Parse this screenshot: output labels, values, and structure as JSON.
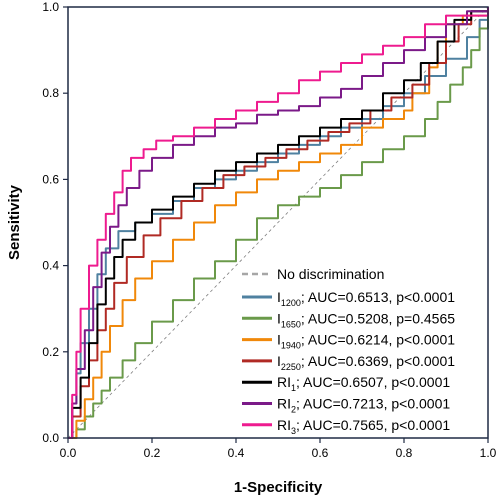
{
  "chart_data": {
    "type": "line",
    "title": "",
    "xlabel": "1-Specificity",
    "ylabel": "Sensitivity",
    "xlim": [
      0,
      1
    ],
    "ylim": [
      0,
      1
    ],
    "x_ticks": [
      "0.0",
      "0.2",
      "0.4",
      "0.6",
      "0.8",
      "1.0"
    ],
    "y_ticks": [
      "0.0",
      "0.2",
      "0.4",
      "0.6",
      "0.8",
      "1.0"
    ],
    "grid": false,
    "legend_position": "bottom-right",
    "reference_line": {
      "name": "No discrimination",
      "color": "#a6a6a6",
      "style": "dashed",
      "points": [
        [
          0,
          0
        ],
        [
          1,
          1
        ]
      ]
    },
    "series": [
      {
        "base": "I",
        "sub": "1200",
        "stats": "; AUC=0.6513, p<0.0001",
        "color": "#4f81a0",
        "points": [
          [
            0,
            0
          ],
          [
            0.01,
            0.08
          ],
          [
            0.02,
            0.15
          ],
          [
            0.03,
            0.22
          ],
          [
            0.05,
            0.3
          ],
          [
            0.07,
            0.38
          ],
          [
            0.09,
            0.44
          ],
          [
            0.12,
            0.48
          ],
          [
            0.16,
            0.5
          ],
          [
            0.2,
            0.52
          ],
          [
            0.25,
            0.55
          ],
          [
            0.3,
            0.58
          ],
          [
            0.35,
            0.6
          ],
          [
            0.4,
            0.62
          ],
          [
            0.45,
            0.64
          ],
          [
            0.5,
            0.66
          ],
          [
            0.55,
            0.68
          ],
          [
            0.6,
            0.7
          ],
          [
            0.65,
            0.72
          ],
          [
            0.7,
            0.74
          ],
          [
            0.75,
            0.77
          ],
          [
            0.8,
            0.8
          ],
          [
            0.85,
            0.84
          ],
          [
            0.9,
            0.88
          ],
          [
            0.95,
            0.93
          ],
          [
            0.98,
            0.97
          ],
          [
            1,
            1
          ]
        ]
      },
      {
        "base": "I",
        "sub": "1650",
        "stats": "; AUC=0.5208, p=0.4565",
        "color": "#6a9a4a",
        "points": [
          [
            0,
            0
          ],
          [
            0.02,
            0.02
          ],
          [
            0.04,
            0.05
          ],
          [
            0.06,
            0.08
          ],
          [
            0.08,
            0.11
          ],
          [
            0.1,
            0.14
          ],
          [
            0.13,
            0.18
          ],
          [
            0.16,
            0.22
          ],
          [
            0.2,
            0.27
          ],
          [
            0.25,
            0.32
          ],
          [
            0.3,
            0.37
          ],
          [
            0.35,
            0.41
          ],
          [
            0.4,
            0.46
          ],
          [
            0.45,
            0.51
          ],
          [
            0.5,
            0.54
          ],
          [
            0.55,
            0.56
          ],
          [
            0.6,
            0.58
          ],
          [
            0.65,
            0.61
          ],
          [
            0.7,
            0.64
          ],
          [
            0.75,
            0.67
          ],
          [
            0.8,
            0.7
          ],
          [
            0.85,
            0.74
          ],
          [
            0.88,
            0.78
          ],
          [
            0.91,
            0.82
          ],
          [
            0.94,
            0.86
          ],
          [
            0.96,
            0.9
          ],
          [
            0.98,
            0.95
          ],
          [
            1,
            1
          ]
        ]
      },
      {
        "base": "I",
        "sub": "1940",
        "stats": "; AUC=0.6214, p<0.0001",
        "color": "#f0880a",
        "points": [
          [
            0,
            0
          ],
          [
            0.02,
            0.04
          ],
          [
            0.04,
            0.09
          ],
          [
            0.06,
            0.14
          ],
          [
            0.08,
            0.2
          ],
          [
            0.1,
            0.26
          ],
          [
            0.13,
            0.32
          ],
          [
            0.16,
            0.37
          ],
          [
            0.2,
            0.41
          ],
          [
            0.25,
            0.46
          ],
          [
            0.3,
            0.5
          ],
          [
            0.35,
            0.54
          ],
          [
            0.4,
            0.57
          ],
          [
            0.45,
            0.6
          ],
          [
            0.5,
            0.62
          ],
          [
            0.55,
            0.64
          ],
          [
            0.6,
            0.66
          ],
          [
            0.65,
            0.68
          ],
          [
            0.7,
            0.72
          ],
          [
            0.75,
            0.74
          ],
          [
            0.8,
            0.76
          ],
          [
            0.82,
            0.8
          ],
          [
            0.86,
            0.86
          ],
          [
            0.88,
            0.92
          ],
          [
            0.9,
            0.96
          ],
          [
            0.94,
            0.98
          ],
          [
            1,
            1
          ]
        ]
      },
      {
        "base": "I",
        "sub": "2250",
        "stats": "; AUC=0.6369, p<0.0001",
        "color": "#b02a24",
        "points": [
          [
            0,
            0
          ],
          [
            0.01,
            0.05
          ],
          [
            0.03,
            0.12
          ],
          [
            0.05,
            0.18
          ],
          [
            0.07,
            0.25
          ],
          [
            0.09,
            0.3
          ],
          [
            0.11,
            0.36
          ],
          [
            0.14,
            0.42
          ],
          [
            0.18,
            0.47
          ],
          [
            0.22,
            0.51
          ],
          [
            0.27,
            0.55
          ],
          [
            0.32,
            0.58
          ],
          [
            0.37,
            0.61
          ],
          [
            0.42,
            0.63
          ],
          [
            0.47,
            0.65
          ],
          [
            0.52,
            0.67
          ],
          [
            0.57,
            0.69
          ],
          [
            0.62,
            0.71
          ],
          [
            0.67,
            0.73
          ],
          [
            0.72,
            0.76
          ],
          [
            0.77,
            0.79
          ],
          [
            0.82,
            0.82
          ],
          [
            0.86,
            0.87
          ],
          [
            0.9,
            0.92
          ],
          [
            0.93,
            0.96
          ],
          [
            0.96,
            0.99
          ],
          [
            1,
            1
          ]
        ]
      },
      {
        "base": "RI",
        "sub": "1",
        "stats": "; AUC=0.6507, p<0.0001",
        "color": "#000000",
        "points": [
          [
            0,
            0
          ],
          [
            0.01,
            0.07
          ],
          [
            0.03,
            0.14
          ],
          [
            0.05,
            0.22
          ],
          [
            0.07,
            0.31
          ],
          [
            0.09,
            0.37
          ],
          [
            0.11,
            0.42
          ],
          [
            0.13,
            0.46
          ],
          [
            0.16,
            0.5
          ],
          [
            0.2,
            0.53
          ],
          [
            0.25,
            0.56
          ],
          [
            0.3,
            0.59
          ],
          [
            0.35,
            0.62
          ],
          [
            0.4,
            0.64
          ],
          [
            0.45,
            0.66
          ],
          [
            0.5,
            0.68
          ],
          [
            0.55,
            0.7
          ],
          [
            0.6,
            0.72
          ],
          [
            0.65,
            0.74
          ],
          [
            0.7,
            0.76
          ],
          [
            0.75,
            0.8
          ],
          [
            0.8,
            0.83
          ],
          [
            0.84,
            0.87
          ],
          [
            0.88,
            0.92
          ],
          [
            0.92,
            0.97
          ],
          [
            0.96,
            0.99
          ],
          [
            1,
            1
          ]
        ]
      },
      {
        "base": "RI",
        "sub": "2",
        "stats": "; AUC=0.7213, p<0.0001",
        "color": "#7b1a88",
        "points": [
          [
            0,
            0
          ],
          [
            0.01,
            0.08
          ],
          [
            0.02,
            0.16
          ],
          [
            0.04,
            0.25
          ],
          [
            0.06,
            0.35
          ],
          [
            0.08,
            0.43
          ],
          [
            0.1,
            0.49
          ],
          [
            0.12,
            0.54
          ],
          [
            0.14,
            0.58
          ],
          [
            0.17,
            0.62
          ],
          [
            0.2,
            0.65
          ],
          [
            0.25,
            0.68
          ],
          [
            0.3,
            0.7
          ],
          [
            0.35,
            0.72
          ],
          [
            0.4,
            0.73
          ],
          [
            0.45,
            0.75
          ],
          [
            0.5,
            0.76
          ],
          [
            0.55,
            0.77
          ],
          [
            0.6,
            0.79
          ],
          [
            0.65,
            0.81
          ],
          [
            0.7,
            0.84
          ],
          [
            0.75,
            0.87
          ],
          [
            0.8,
            0.9
          ],
          [
            0.85,
            0.93
          ],
          [
            0.9,
            0.96
          ],
          [
            0.95,
            0.99
          ],
          [
            1,
            1
          ]
        ]
      },
      {
        "base": "RI",
        "sub": "3",
        "stats": "; AUC=0.7565, p<0.0001",
        "color": "#ee1b8f",
        "points": [
          [
            0,
            0
          ],
          [
            0.01,
            0.1
          ],
          [
            0.02,
            0.2
          ],
          [
            0.03,
            0.3
          ],
          [
            0.05,
            0.4
          ],
          [
            0.07,
            0.46
          ],
          [
            0.09,
            0.52
          ],
          [
            0.11,
            0.57
          ],
          [
            0.13,
            0.62
          ],
          [
            0.15,
            0.65
          ],
          [
            0.18,
            0.67
          ],
          [
            0.21,
            0.69
          ],
          [
            0.25,
            0.7
          ],
          [
            0.3,
            0.72
          ],
          [
            0.35,
            0.74
          ],
          [
            0.4,
            0.76
          ],
          [
            0.45,
            0.78
          ],
          [
            0.5,
            0.8
          ],
          [
            0.55,
            0.83
          ],
          [
            0.6,
            0.85
          ],
          [
            0.65,
            0.87
          ],
          [
            0.7,
            0.89
          ],
          [
            0.75,
            0.91
          ],
          [
            0.8,
            0.93
          ],
          [
            0.85,
            0.96
          ],
          [
            0.9,
            0.98
          ],
          [
            1,
            1
          ]
        ]
      }
    ]
  }
}
